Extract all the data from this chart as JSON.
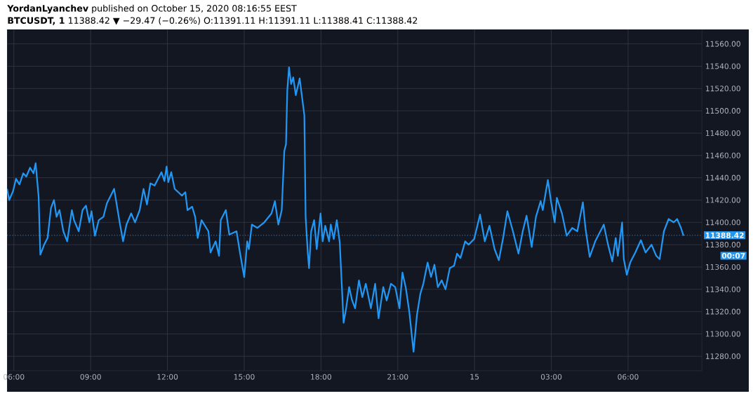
{
  "chart_data": {
    "type": "line",
    "title": "**YordanLyanchev** published on October 15, 2020 08:16:55 EEST",
    "subtitle": "**BTCUSDT, 1** 11388.42 ▼ −29.47 (−0.26%) O:11391.11 H:11391.11 L:11388.41 C:11388.42",
    "x": [
      "2020-10-14T05:44",
      "2020-10-14T05:49",
      "2020-10-14T05:58",
      "2020-10-14T06:05",
      "2020-10-14T06:13",
      "2020-10-14T06:22",
      "2020-10-14T06:29",
      "2020-10-14T06:38",
      "2020-10-14T06:46",
      "2020-10-14T06:51",
      "2020-10-14T06:58",
      "2020-10-14T07:02",
      "2020-10-14T07:11",
      "2020-10-14T07:19",
      "2020-10-14T07:27",
      "2020-10-14T07:34",
      "2020-10-14T07:40",
      "2020-10-14T07:47",
      "2020-10-14T07:56",
      "2020-10-14T08:05",
      "2020-10-14T08:16",
      "2020-10-14T08:21",
      "2020-10-14T08:32",
      "2020-10-14T08:41",
      "2020-10-14T08:49",
      "2020-10-14T08:57",
      "2020-10-14T09:02",
      "2020-10-14T09:10",
      "2020-10-14T09:19",
      "2020-10-14T09:30",
      "2020-10-14T09:38",
      "2020-10-14T09:55",
      "2020-10-14T10:08",
      "2020-10-14T10:16",
      "2020-10-14T10:24",
      "2020-10-14T10:35",
      "2020-10-14T10:44",
      "2020-10-14T10:55",
      "2020-10-14T11:04",
      "2020-10-14T11:12",
      "2020-10-14T11:20",
      "2020-10-14T11:30",
      "2020-10-14T11:46",
      "2020-10-14T11:53",
      "2020-10-14T11:58",
      "2020-10-14T12:02",
      "2020-10-14T12:09",
      "2020-10-14T12:17",
      "2020-10-14T12:34",
      "2020-10-14T12:42",
      "2020-10-14T12:47",
      "2020-10-14T12:58",
      "2020-10-14T13:05",
      "2020-10-14T13:11",
      "2020-10-14T13:20",
      "2020-10-14T13:36",
      "2020-10-14T13:41",
      "2020-10-14T13:53",
      "2020-10-14T14:01",
      "2020-10-14T14:05",
      "2020-10-14T14:17",
      "2020-10-14T14:25",
      "2020-10-14T14:42",
      "2020-10-14T14:50",
      "2020-10-14T15:00",
      "2020-10-14T15:07",
      "2020-10-14T15:11",
      "2020-10-14T15:18",
      "2020-10-14T15:31",
      "2020-10-14T15:47",
      "2020-10-14T16:04",
      "2020-10-14T16:12",
      "2020-10-14T16:20",
      "2020-10-14T16:28",
      "2020-10-14T16:34",
      "2020-10-14T16:38",
      "2020-10-14T16:41",
      "2020-10-14T16:45",
      "2020-10-14T16:50",
      "2020-10-14T16:55",
      "2020-10-14T17:01",
      "2020-10-14T17:10",
      "2020-10-14T17:16",
      "2020-10-14T17:21",
      "2020-10-14T17:24",
      "2020-10-14T17:29",
      "2020-10-14T17:32",
      "2020-10-14T17:37",
      "2020-10-14T17:44",
      "2020-10-14T17:50",
      "2020-10-14T17:59",
      "2020-10-14T18:04",
      "2020-10-14T18:10",
      "2020-10-14T18:19",
      "2020-10-14T18:23",
      "2020-10-14T18:30",
      "2020-10-14T18:37",
      "2020-10-14T18:44",
      "2020-10-14T18:53",
      "2020-10-14T18:59",
      "2020-10-14T19:06",
      "2020-10-14T19:13",
      "2020-10-14T19:20",
      "2020-10-14T19:29",
      "2020-10-14T19:37",
      "2020-10-14T19:45",
      "2020-10-14T19:57",
      "2020-10-14T20:07",
      "2020-10-14T20:15",
      "2020-10-14T20:26",
      "2020-10-14T20:34",
      "2020-10-14T20:44",
      "2020-10-14T20:54",
      "2020-10-14T21:04",
      "2020-10-14T21:11",
      "2020-10-14T21:19",
      "2020-10-14T21:27",
      "2020-10-14T21:37",
      "2020-10-14T21:45",
      "2020-10-14T21:53",
      "2020-10-14T22:00",
      "2020-10-14T22:10",
      "2020-10-14T22:18",
      "2020-10-14T22:26",
      "2020-10-14T22:34",
      "2020-10-14T22:43",
      "2020-10-14T22:52",
      "2020-10-14T23:02",
      "2020-10-14T23:12",
      "2020-10-14T23:19",
      "2020-10-14T23:27",
      "2020-10-14T23:38",
      "2020-10-14T23:46",
      "2020-10-14T23:59",
      "2020-10-15T00:13",
      "2020-10-15T00:24",
      "2020-10-15T00:35",
      "2020-10-15T00:47",
      "2020-10-15T00:57",
      "2020-10-15T01:07",
      "2020-10-15T01:17",
      "2020-10-15T01:30",
      "2020-10-15T01:43",
      "2020-10-15T01:53",
      "2020-10-15T02:02",
      "2020-10-15T02:14",
      "2020-10-15T02:24",
      "2020-10-15T02:35",
      "2020-10-15T02:40",
      "2020-10-15T02:47",
      "2020-10-15T02:52",
      "2020-10-15T03:00",
      "2020-10-15T03:08",
      "2020-10-15T03:13",
      "2020-10-15T03:25",
      "2020-10-15T03:36",
      "2020-10-15T03:49",
      "2020-10-15T04:01",
      "2020-10-15T04:14",
      "2020-10-15T04:20",
      "2020-10-15T04:30",
      "2020-10-15T04:43",
      "2020-10-15T04:55",
      "2020-10-15T05:03",
      "2020-10-15T05:13",
      "2020-10-15T05:23",
      "2020-10-15T05:31",
      "2020-10-15T05:36",
      "2020-10-15T05:46",
      "2020-10-15T05:50",
      "2020-10-15T05:57",
      "2020-10-15T06:05",
      "2020-10-15T06:17",
      "2020-10-15T06:30",
      "2020-10-15T06:41",
      "2020-10-15T06:55",
      "2020-10-15T07:06",
      "2020-10-15T07:14",
      "2020-10-15T07:24",
      "2020-10-15T07:35",
      "2020-10-15T07:47",
      "2020-10-15T07:55",
      "2020-10-15T08:04",
      "2020-10-15T08:10"
    ],
    "series": [
      {
        "color": "#2196f3",
        "values": [
          11430,
          11420,
          11428,
          11439,
          11434,
          11444,
          11441,
          11449,
          11444,
          11453,
          11423,
          11371,
          11380,
          11386,
          11413,
          11420,
          11405,
          11411,
          11392,
          11383,
          11411,
          11402,
          11392,
          11411,
          11415,
          11400,
          11410,
          11388,
          11402,
          11405,
          11417,
          11430,
          11400,
          11383,
          11398,
          11408,
          11400,
          11411,
          11430,
          11416,
          11435,
          11433,
          11445,
          11437,
          11450,
          11436,
          11445,
          11430,
          11424,
          11427,
          11411,
          11414,
          11405,
          11386,
          11402,
          11392,
          11373,
          11383,
          11370,
          11402,
          11411,
          11389,
          11392,
          11373,
          11351,
          11383,
          11376,
          11398,
          11395,
          11400,
          11408,
          11419,
          11398,
          11411,
          11464,
          11470,
          11518,
          11539,
          11524,
          11530,
          11514,
          11529,
          11511,
          11496,
          11405,
          11373,
          11359,
          11392,
          11402,
          11376,
          11408,
          11383,
          11397,
          11383,
          11398,
          11385,
          11402,
          11382,
          11310,
          11323,
          11342,
          11330,
          11323,
          11348,
          11333,
          11345,
          11323,
          11345,
          11314,
          11342,
          11330,
          11345,
          11342,
          11323,
          11355,
          11341,
          11320,
          11284,
          11317,
          11336,
          11345,
          11364,
          11351,
          11362,
          11342,
          11348,
          11340,
          11359,
          11361,
          11372,
          11368,
          11383,
          11380,
          11385,
          11407,
          11383,
          11397,
          11376,
          11366,
          11386,
          11410,
          11392,
          11372,
          11392,
          11406,
          11378,
          11405,
          11419,
          11411,
          11427,
          11438,
          11417,
          11400,
          11422,
          11408,
          11388,
          11395,
          11392,
          11418,
          11395,
          11369,
          11383,
          11392,
          11398,
          11380,
          11365,
          11386,
          11370,
          11400,
          11367,
          11353,
          11364,
          11373,
          11384,
          11373,
          11380,
          11370,
          11367,
          11392,
          11403,
          11400,
          11403,
          11395,
          11388
        ]
      }
    ],
    "xlim": [
      "2020-10-14T05:44",
      "2020-10-15T08:53"
    ],
    "ylim": [
      11267,
      11573
    ],
    "xticks": [
      {
        "value": "2020-10-14T06:00",
        "label": "06:00"
      },
      {
        "value": "2020-10-14T09:00",
        "label": "09:00"
      },
      {
        "value": "2020-10-14T12:00",
        "label": "12:00"
      },
      {
        "value": "2020-10-14T15:00",
        "label": "15:00"
      },
      {
        "value": "2020-10-14T18:00",
        "label": "18:00"
      },
      {
        "value": "2020-10-14T21:00",
        "label": "21:00"
      },
      {
        "value": "2020-10-15T00:00",
        "label": "15"
      },
      {
        "value": "2020-10-15T03:00",
        "label": "03:00"
      },
      {
        "value": "2020-10-15T06:00",
        "label": "06:00"
      }
    ],
    "yticks": [
      {
        "value": 11280,
        "label": "11280.00"
      },
      {
        "value": 11300,
        "label": "11300.00"
      },
      {
        "value": 11320,
        "label": "11320.00"
      },
      {
        "value": 11340,
        "label": "11340.00"
      },
      {
        "value": 11360,
        "label": "11360.00"
      },
      {
        "value": 11380,
        "label": "11380.00"
      },
      {
        "value": 11400,
        "label": "11400.00"
      },
      {
        "value": 11420,
        "label": "11420.00"
      },
      {
        "value": 11440,
        "label": "11440.00"
      },
      {
        "value": 11460,
        "label": "11460.00"
      },
      {
        "value": 11480,
        "label": "11480.00"
      },
      {
        "value": 11500,
        "label": "11500.00"
      },
      {
        "value": 11520,
        "label": "11520.00"
      },
      {
        "value": 11540,
        "label": "11540.00"
      },
      {
        "value": 11560,
        "label": "11560.00"
      }
    ],
    "grid": true,
    "ref_lines": [
      {
        "axis": "y",
        "value": 11388.42,
        "label": "11388.42",
        "color": "#2196f3",
        "line_style": "dotted"
      }
    ],
    "annotations": [
      "00:07"
    ]
  }
}
